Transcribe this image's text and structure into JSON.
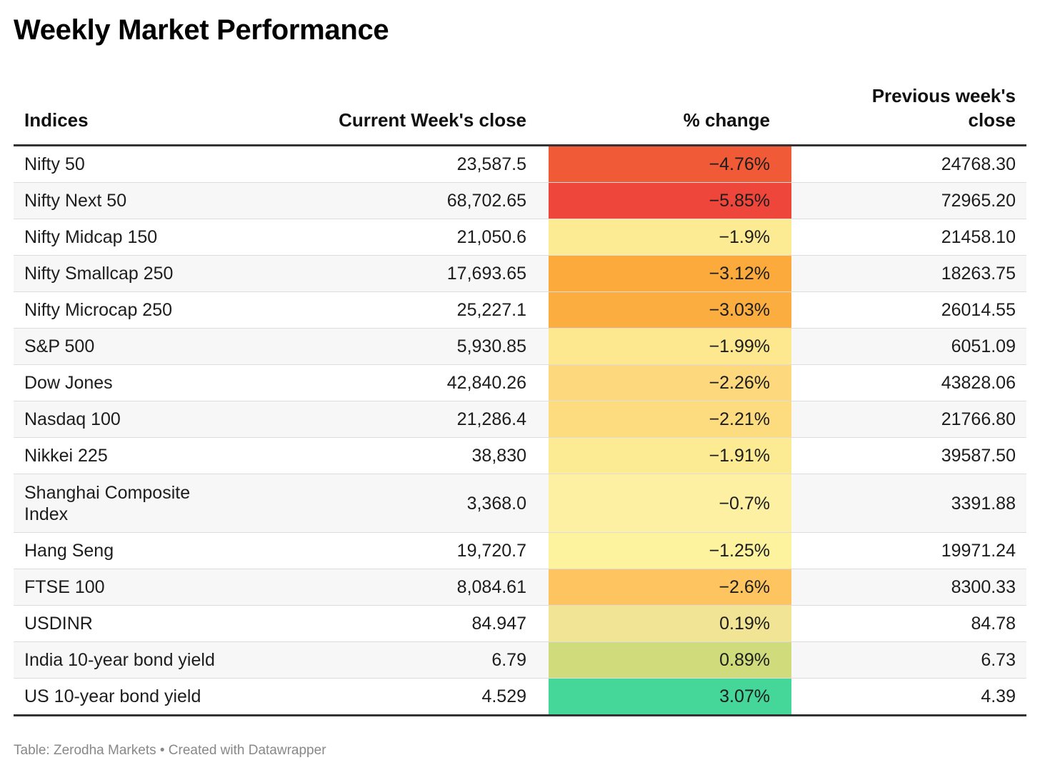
{
  "chart_data": {
    "type": "table",
    "title": "Weekly Market Performance",
    "columns": [
      "Indices",
      "Current Week's close",
      "% change",
      "Previous week's close"
    ],
    "rows": [
      {
        "name": "Nifty 50",
        "current": "23,587.5",
        "change": "−4.76%",
        "change_value": -4.76,
        "previous": "24768.30",
        "color": "#f15a36"
      },
      {
        "name": "Nifty Next 50",
        "current": "68,702.65",
        "change": "−5.85%",
        "change_value": -5.85,
        "previous": "72965.20",
        "color": "#ee463a"
      },
      {
        "name": "Nifty Midcap 150",
        "current": "21,050.6",
        "change": "−1.9%",
        "change_value": -1.9,
        "previous": "21458.10",
        "color": "#fdeb93"
      },
      {
        "name": "Nifty Smallcap 250",
        "current": "17,693.65",
        "change": "−3.12%",
        "change_value": -3.12,
        "previous": "18263.75",
        "color": "#fcaa3c"
      },
      {
        "name": "Nifty Microcap 250",
        "current": "25,227.1",
        "change": "−3.03%",
        "change_value": -3.03,
        "previous": "26014.55",
        "color": "#fcad40"
      },
      {
        "name": "S&P 500",
        "current": "5,930.85",
        "change": "−1.99%",
        "change_value": -1.99,
        "previous": "6051.09",
        "color": "#fde890"
      },
      {
        "name": "Dow Jones",
        "current": "42,840.26",
        "change": "−2.26%",
        "change_value": -2.26,
        "previous": "43828.06",
        "color": "#fdd87c"
      },
      {
        "name": "Nasdaq 100",
        "current": "21,286.4",
        "change": "−2.21%",
        "change_value": -2.21,
        "previous": "21766.80",
        "color": "#fddb7f"
      },
      {
        "name": "Nikkei 225",
        "current": "38,830",
        "change": "−1.91%",
        "change_value": -1.91,
        "previous": "39587.50",
        "color": "#fdeb93"
      },
      {
        "name": "Shanghai Composite Index",
        "current": "3,368.0",
        "change": "−0.7%",
        "change_value": -0.7,
        "previous": "3391.88",
        "color": "#fdf0a3",
        "tall": true
      },
      {
        "name": "Hang Seng",
        "current": "19,720.7",
        "change": "−1.25%",
        "change_value": -1.25,
        "previous": "19971.24",
        "color": "#fdf29e"
      },
      {
        "name": "FTSE 100",
        "current": "8,084.61",
        "change": "−2.6%",
        "change_value": -2.6,
        "previous": "8300.33",
        "color": "#fdc460"
      },
      {
        "name": "USDINR",
        "current": "84.947",
        "change": "0.19%",
        "change_value": 0.19,
        "previous": "84.78",
        "color": "#f1e494"
      },
      {
        "name": "India 10-year bond yield",
        "current": "6.79",
        "change": "0.89%",
        "change_value": 0.89,
        "previous": "6.73",
        "color": "#d0db7c"
      },
      {
        "name": "US 10-year bond yield",
        "current": "4.529",
        "change": "3.07%",
        "change_value": 3.07,
        "previous": "4.39",
        "color": "#44d799"
      }
    ]
  },
  "source_note": "Table: Zerodha Markets • Created with Datawrapper"
}
